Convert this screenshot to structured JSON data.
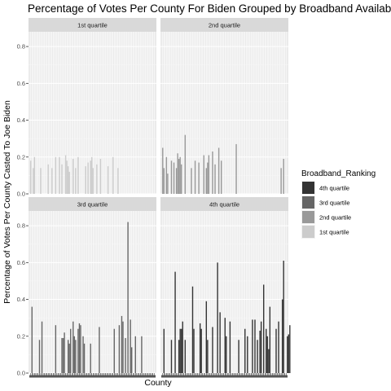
{
  "chart_data": {
    "type": "bar",
    "title": "Percentage of Votes Per County For Biden Grouped by Broadband Availability",
    "xlabel": "County",
    "ylabel": "Percentage of Votes Per County Casted To Joe Biden",
    "ylim": [
      0,
      0.88
    ],
    "yticks": [
      "0.0",
      "0.2",
      "0.4",
      "0.6",
      "0.8"
    ],
    "grid": true,
    "legend": {
      "title": "Broadband_Ranking",
      "position": "right",
      "entries": [
        {
          "label": "4th quartile",
          "color": "#333333"
        },
        {
          "label": "3rd quartile",
          "color": "#666666"
        },
        {
          "label": "2nd quartile",
          "color": "#999999"
        },
        {
          "label": "1st quartile",
          "color": "#cccccc"
        }
      ]
    },
    "n_counties": 100,
    "panels": [
      {
        "label": "1st quartile",
        "color": "#cccccc",
        "x": [
          1,
          3,
          4,
          9,
          15,
          18,
          21,
          24,
          26,
          29,
          30,
          31,
          32,
          35,
          37,
          39,
          45,
          47,
          49,
          50,
          51,
          54,
          57,
          63,
          67,
          71
        ],
        "y": [
          0.18,
          0.14,
          0.2,
          0.14,
          0.16,
          0.14,
          0.2,
          0.2,
          0.16,
          0.21,
          0.18,
          0.15,
          0.12,
          0.19,
          0.14,
          0.2,
          0.15,
          0.17,
          0.18,
          0.2,
          0.14,
          0.16,
          0.19,
          0.15,
          0.2,
          0.14
        ]
      },
      {
        "label": "2nd quartile",
        "color": "#999999",
        "x": [
          1,
          2,
          4,
          5,
          8,
          10,
          12,
          13,
          14,
          15,
          16,
          19,
          24,
          27,
          30,
          34,
          36,
          37,
          38,
          41,
          43,
          46,
          48,
          60,
          96,
          98
        ],
        "y": [
          0.25,
          0.14,
          0.2,
          0.11,
          0.18,
          0.17,
          0.14,
          0.22,
          0.19,
          0.2,
          0.16,
          0.32,
          0.14,
          0.18,
          0.17,
          0.21,
          0.14,
          0.17,
          0.21,
          0.23,
          0.16,
          0.25,
          0.18,
          0.27,
          0.14,
          0.19
        ]
      },
      {
        "label": "3rd quartile",
        "color": "#666666",
        "x": [
          2,
          8,
          10,
          21,
          26,
          27,
          28,
          31,
          32,
          33,
          35,
          36,
          37,
          39,
          40,
          41,
          43,
          44,
          49,
          56,
          68,
          72,
          74,
          75,
          77,
          79,
          81,
          82,
          85,
          90
        ],
        "y": [
          0.36,
          0.18,
          0.28,
          0.26,
          0.19,
          0.19,
          0.22,
          0.18,
          0.16,
          0.24,
          0.28,
          0.2,
          0.18,
          0.24,
          0.27,
          0.26,
          0.2,
          0.16,
          0.16,
          0.25,
          0.24,
          0.26,
          0.31,
          0.28,
          0.19,
          0.82,
          0.29,
          0.14,
          0.2,
          0.2
        ]
      },
      {
        "label": "4th quartile",
        "color": "#333333",
        "x": [
          2,
          8,
          11,
          14,
          15,
          16,
          17,
          19,
          25,
          26,
          31,
          32,
          36,
          37,
          41,
          45,
          47,
          51,
          52,
          55,
          62,
          67,
          69,
          73,
          75,
          77,
          79,
          80,
          82,
          84,
          85,
          86,
          87,
          92,
          94,
          97,
          98,
          101,
          102,
          103
        ],
        "y": [
          0.24,
          0.18,
          0.55,
          0.18,
          0.24,
          0.24,
          0.28,
          0.18,
          0.47,
          0.24,
          0.27,
          0.24,
          0.39,
          0.18,
          0.25,
          0.6,
          0.33,
          0.3,
          0.2,
          0.28,
          0.18,
          0.24,
          0.2,
          0.29,
          0.29,
          0.18,
          0.23,
          0.28,
          0.48,
          0.24,
          0.2,
          0.13,
          0.36,
          0.24,
          0.28,
          0.4,
          0.61,
          0.2,
          0.21,
          0.26
        ]
      }
    ]
  }
}
